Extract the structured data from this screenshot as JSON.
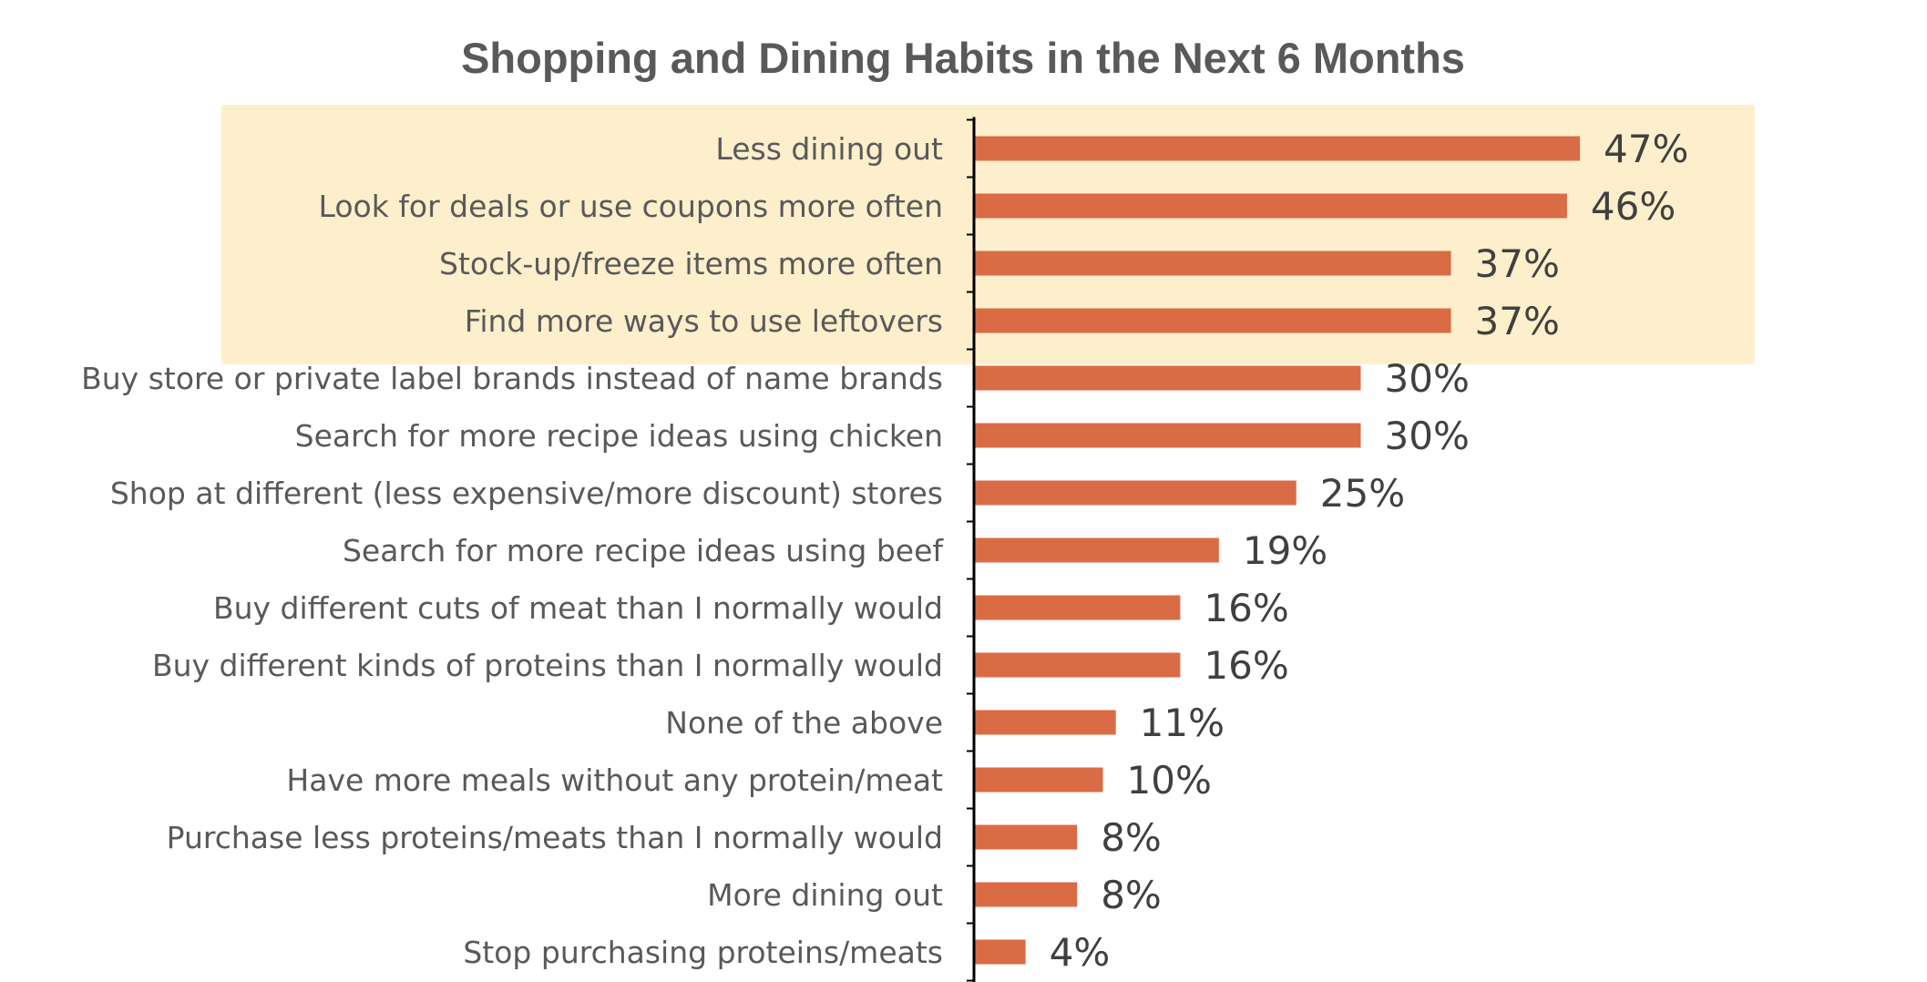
{
  "colors": {
    "bar": "#D96C45",
    "highlight": "#FDEFCB",
    "axis": "#000000",
    "title": "#595959",
    "label": "#595959",
    "value": "#404040"
  },
  "chart_data": {
    "type": "bar",
    "orientation": "horizontal",
    "title": "Shopping and Dining Habits in the Next 6 Months",
    "xlabel": "",
    "ylabel": "",
    "xlim": [
      0,
      50
    ],
    "grid": false,
    "legend": "none",
    "highlighted_categories": [
      "Less dining out",
      "Look for deals or use coupons more often",
      "Stock-up/freeze items more often",
      "Find more ways to use leftovers"
    ],
    "categories": [
      "Less dining out",
      "Look for deals or use coupons more often",
      "Stock-up/freeze items more often",
      "Find more ways to use leftovers",
      "Buy store or private label brands instead of name brands",
      "Search for more recipe ideas using chicken",
      "Shop at different (less expensive/more discount) stores",
      "Search for more recipe ideas using beef",
      "Buy different cuts of meat than I normally would",
      "Buy different kinds of proteins than I normally would",
      "None of the above",
      "Have more meals without any protein/meat",
      "Purchase less proteins/meats than I normally would",
      "More dining out",
      "Stop purchasing proteins/meats"
    ],
    "values": [
      47,
      46,
      37,
      37,
      30,
      30,
      25,
      19,
      16,
      16,
      11,
      10,
      8,
      8,
      4
    ],
    "value_labels": [
      "47%",
      "46%",
      "37%",
      "37%",
      "30%",
      "30%",
      "25%",
      "19%",
      "16%",
      "16%",
      "11%",
      "10%",
      "8%",
      "8%",
      "4%"
    ]
  }
}
